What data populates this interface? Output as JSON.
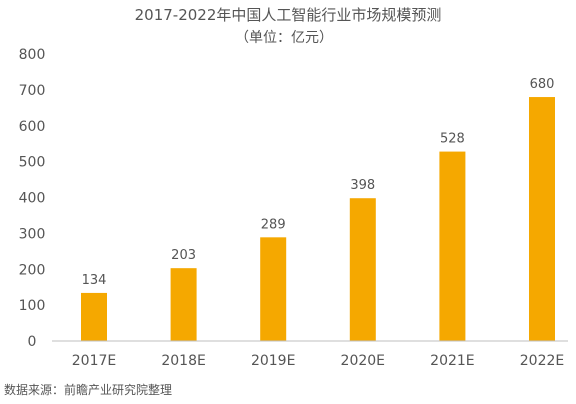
{
  "chart_data": {
    "type": "bar",
    "title": "2017-2022年中国人工智能行业市场规模预测",
    "subtitle": "（单位：亿元）",
    "xlabel": "",
    "ylabel": "",
    "categories": [
      "2017E",
      "2018E",
      "2019E",
      "2020E",
      "2021E",
      "2022E"
    ],
    "values": [
      134,
      203,
      289,
      398,
      528,
      680
    ],
    "value_labels": [
      "134",
      "203",
      "289",
      "398",
      "528",
      "680"
    ],
    "ylim": [
      0,
      800
    ],
    "y_ticks": [
      0,
      100,
      200,
      300,
      400,
      500,
      600,
      700,
      800
    ],
    "y_tick_labels": [
      "0",
      "100",
      "200",
      "300",
      "400",
      "500",
      "600",
      "700",
      "800"
    ],
    "grid": false,
    "legend": "none",
    "bar_color": "#F5A800"
  },
  "source_note": "数据来源：前瞻产业研究院整理",
  "colors": {
    "bar": "#F5A800",
    "text": "#555555",
    "axis": "#BFBFBF"
  }
}
